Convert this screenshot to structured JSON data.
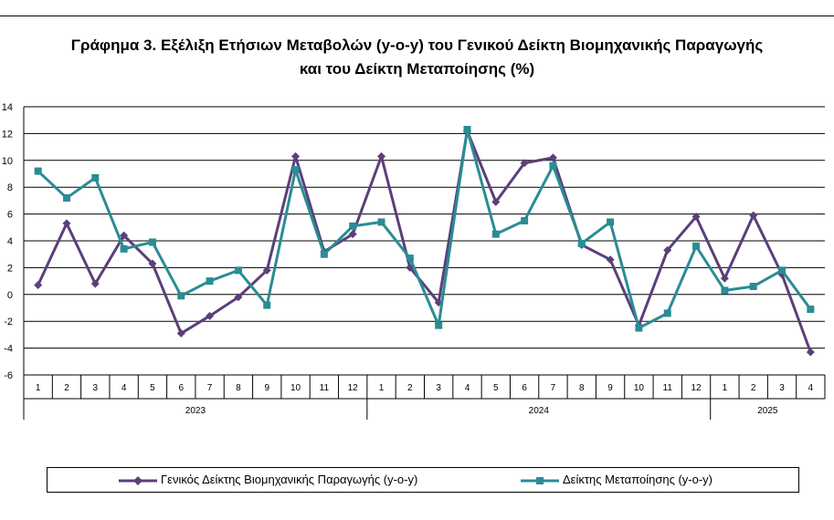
{
  "chart_data": {
    "type": "line",
    "title": "Γράφημα 3. Εξέλιξη Ετήσιων Μεταβολών (y-o-y) του Γενικού Δείκτη Βιομηχανικής Παραγωγής",
    "title_line2": "και του Δείκτη Μεταποίησης (%)",
    "ylim": [
      -6,
      14
    ],
    "yticks": [
      -6,
      -4,
      -2,
      0,
      2,
      4,
      6,
      8,
      10,
      12,
      14
    ],
    "categories": [
      "1",
      "2",
      "3",
      "4",
      "5",
      "6",
      "7",
      "8",
      "9",
      "10",
      "11",
      "12",
      "1",
      "2",
      "3",
      "4",
      "5",
      "6",
      "7",
      "8",
      "9",
      "10",
      "11",
      "12",
      "1",
      "2",
      "3",
      "4"
    ],
    "years": [
      {
        "label": "2023",
        "count": 12
      },
      {
        "label": "2024",
        "count": 12
      },
      {
        "label": "2025",
        "count": 4
      }
    ],
    "series": [
      {
        "name": "Γενικός Δείκτης Βιομηχανικής Παραγωγής (y-o-y)",
        "color": "#5b3f7a",
        "marker": "diamond",
        "values": [
          0.7,
          5.3,
          0.8,
          4.4,
          2.3,
          -2.9,
          -1.6,
          -0.2,
          1.8,
          10.3,
          3.2,
          4.5,
          10.3,
          2.0,
          -0.6,
          12.2,
          6.9,
          9.8,
          10.2,
          3.7,
          2.6,
          -2.3,
          3.3,
          5.8,
          1.2,
          5.9,
          1.5,
          -4.3
        ]
      },
      {
        "name": "Δείκτης Μεταποίησης (y-o-y)",
        "color": "#2a8c94",
        "marker": "square",
        "values": [
          9.2,
          7.2,
          8.7,
          3.4,
          3.9,
          -0.1,
          1.0,
          1.8,
          -0.8,
          9.3,
          3.0,
          5.1,
          5.4,
          2.7,
          -2.3,
          12.3,
          4.5,
          5.5,
          9.6,
          3.8,
          5.4,
          -2.5,
          -1.4,
          3.6,
          0.3,
          0.6,
          1.8,
          -1.1
        ]
      }
    ]
  }
}
